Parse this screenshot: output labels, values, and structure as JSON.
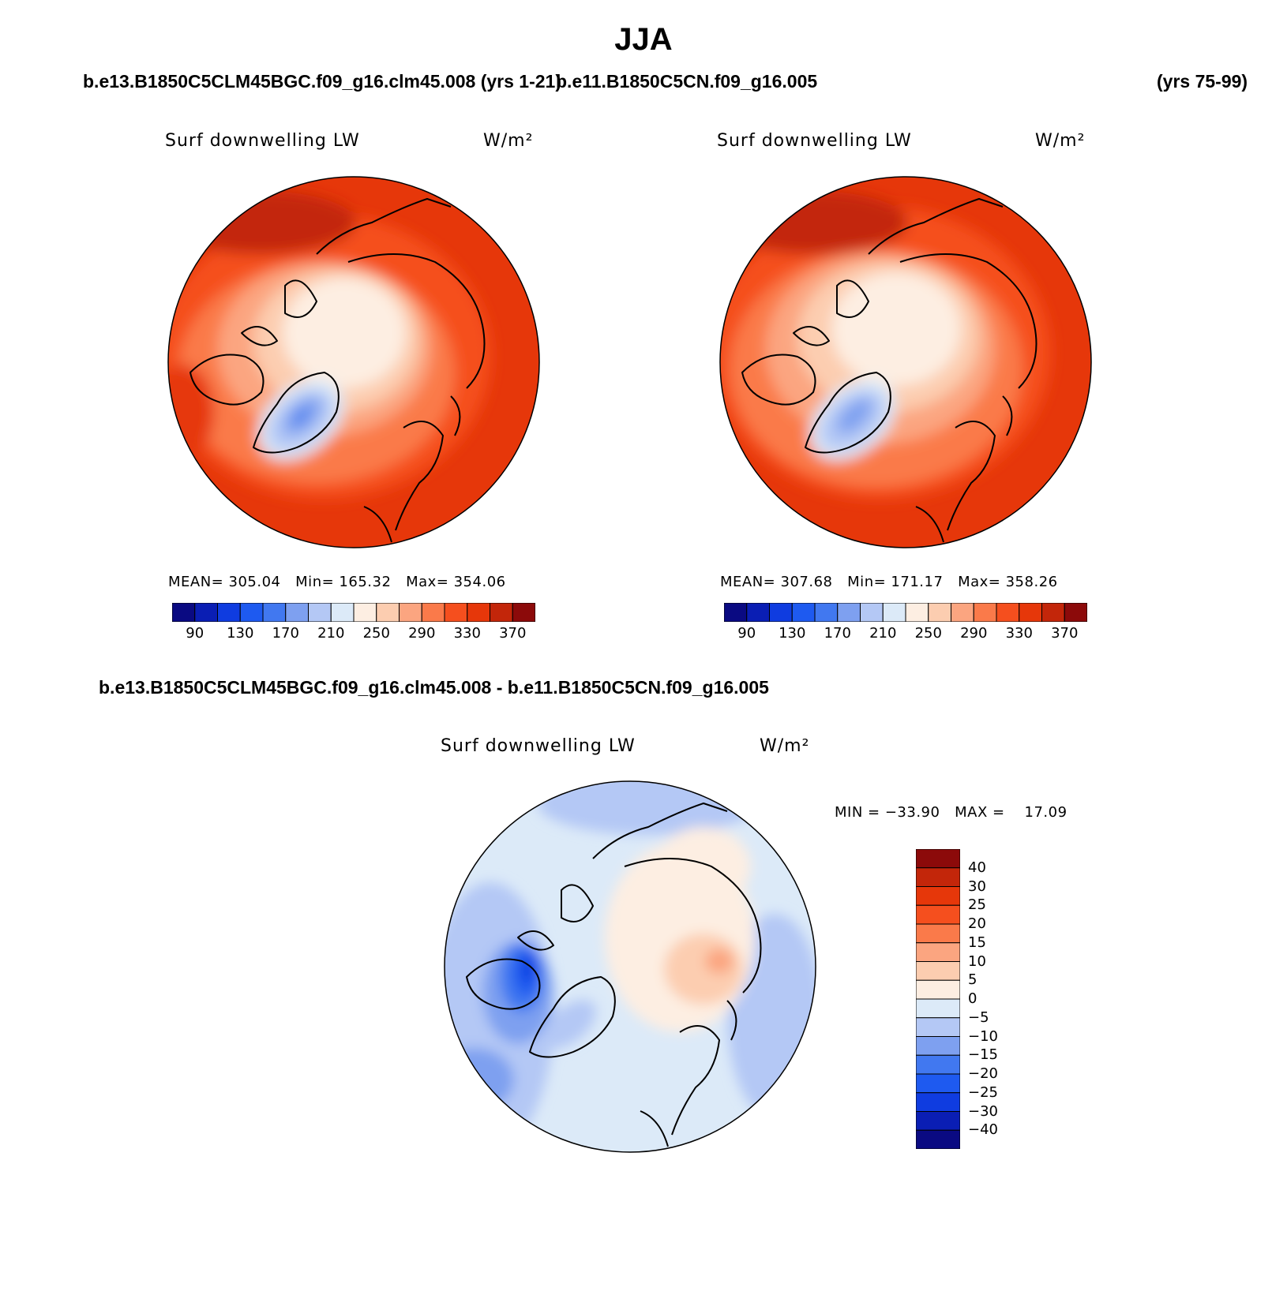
{
  "title": "JJA",
  "headers": {
    "case1": "b.e13.B1850C5CLM45BGC.f09_g16.clm45.008 (yrs 1-21)",
    "case2": "b.e11.B1850C5CN.f09_g16.005",
    "case2_years": "(yrs 75-99)",
    "diff": "b.e13.B1850C5CLM45BGC.f09_g16.clm45.008 - b.e11.B1850C5CN.f09_g16.005"
  },
  "colors": {
    "abs_scale": [
      "#0a0a82",
      "#0a1eb4",
      "#0f3ce0",
      "#1e5af0",
      "#4178f0",
      "#7ea0f0",
      "#b4c8f5",
      "#dceaf8",
      "#fdeee2",
      "#fccdb0",
      "#fba580",
      "#fa7a4a",
      "#f54f1e",
      "#e6370a",
      "#c3260a",
      "#8c0a0a"
    ],
    "diff_scale": [
      "#0a0a82",
      "#0a1eb4",
      "#0f3ce0",
      "#1e5af0",
      "#4178f0",
      "#7ea0f0",
      "#b4c8f5",
      "#dceaf8",
      "#fdeee2",
      "#fccdb0",
      "#fba580",
      "#fa7a4a",
      "#f54f1e",
      "#e6370a",
      "#c3260a",
      "#8c0a0a"
    ]
  },
  "chart_data": [
    {
      "type": "heatmap",
      "projection": "north polar stereographic",
      "title": "Surf downwelling LW",
      "units": "W/m²",
      "case": "b.e13.B1850C5CLM45BGC.f09_g16.clm45.008",
      "years": "yrs 1-21",
      "stats": {
        "mean_label": "MEAN=",
        "mean": "305.04",
        "min_label": "Min=",
        "min": "165.32",
        "max_label": "Max=",
        "max": "354.06"
      },
      "colorbar": {
        "orientation": "horizontal",
        "tick_labels": [
          "90",
          "130",
          "170",
          "210",
          "250",
          "290",
          "330",
          "370"
        ]
      }
    },
    {
      "type": "heatmap",
      "projection": "north polar stereographic",
      "title": "Surf downwelling LW",
      "units": "W/m²",
      "case": "b.e11.B1850C5CN.f09_g16.005",
      "years": "yrs 75-99",
      "stats": {
        "mean_label": "MEAN=",
        "mean": "307.68",
        "min_label": "Min=",
        "min": "171.17",
        "max_label": "Max=",
        "max": "358.26"
      },
      "colorbar": {
        "orientation": "horizontal",
        "tick_labels": [
          "90",
          "130",
          "170",
          "210",
          "250",
          "290",
          "330",
          "370"
        ]
      }
    },
    {
      "type": "heatmap",
      "projection": "north polar stereographic",
      "title": "Surf downwelling LW",
      "units": "W/m²",
      "case": "difference",
      "stats": {
        "min_label": "MIN =",
        "min": "−33.90",
        "max_label": "MAX =",
        "max": "17.09"
      },
      "colorbar": {
        "orientation": "vertical",
        "tick_labels": [
          "40",
          "30",
          "25",
          "20",
          "15",
          "10",
          "5",
          "0",
          "−5",
          "−10",
          "−15",
          "−20",
          "−25",
          "−30",
          "−40"
        ]
      }
    }
  ]
}
